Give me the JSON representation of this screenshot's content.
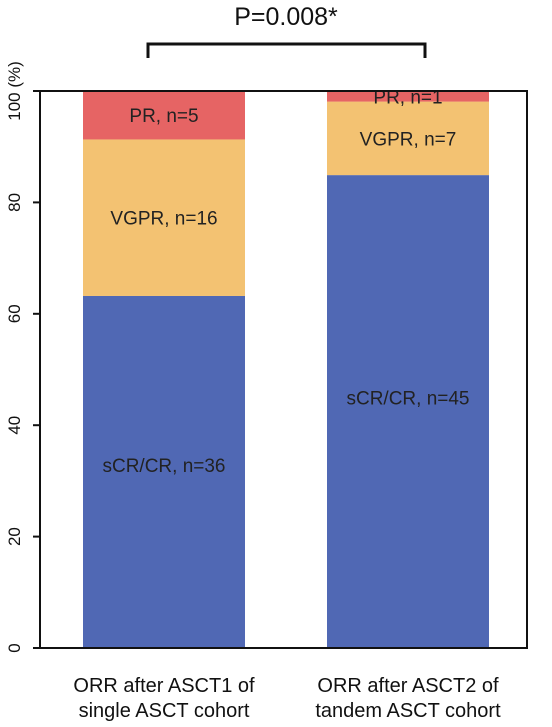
{
  "chart_data": {
    "type": "bar",
    "stacked": true,
    "ylabel": "(%)",
    "ylim": [
      0,
      100
    ],
    "yticks": [
      0,
      20,
      40,
      60,
      80,
      100
    ],
    "categories": [
      [
        "ORR after ASCT1 of",
        "single ASCT cohort"
      ],
      [
        "ORR after ASCT2 of",
        "tandem ASCT cohort"
      ]
    ],
    "series": [
      {
        "key": "sCR/CR",
        "color": "#5068b4",
        "values": [
          63.2,
          84.9
        ],
        "labels": [
          "sCR/CR, n=36",
          "sCR/CR, n=45"
        ]
      },
      {
        "key": "VGPR",
        "color": "#f3c272",
        "values": [
          28.1,
          13.2
        ],
        "labels": [
          "VGPR, n=16",
          "VGPR, n=7"
        ]
      },
      {
        "key": "PR",
        "color": "#e66464",
        "values": [
          8.7,
          1.9
        ],
        "labels": [
          "PR, n=5",
          "PR, n=1"
        ]
      }
    ],
    "annotation": {
      "text": "P=0.008*",
      "type": "bracket",
      "between": [
        0,
        1
      ]
    },
    "grid": false,
    "legend": "none"
  }
}
